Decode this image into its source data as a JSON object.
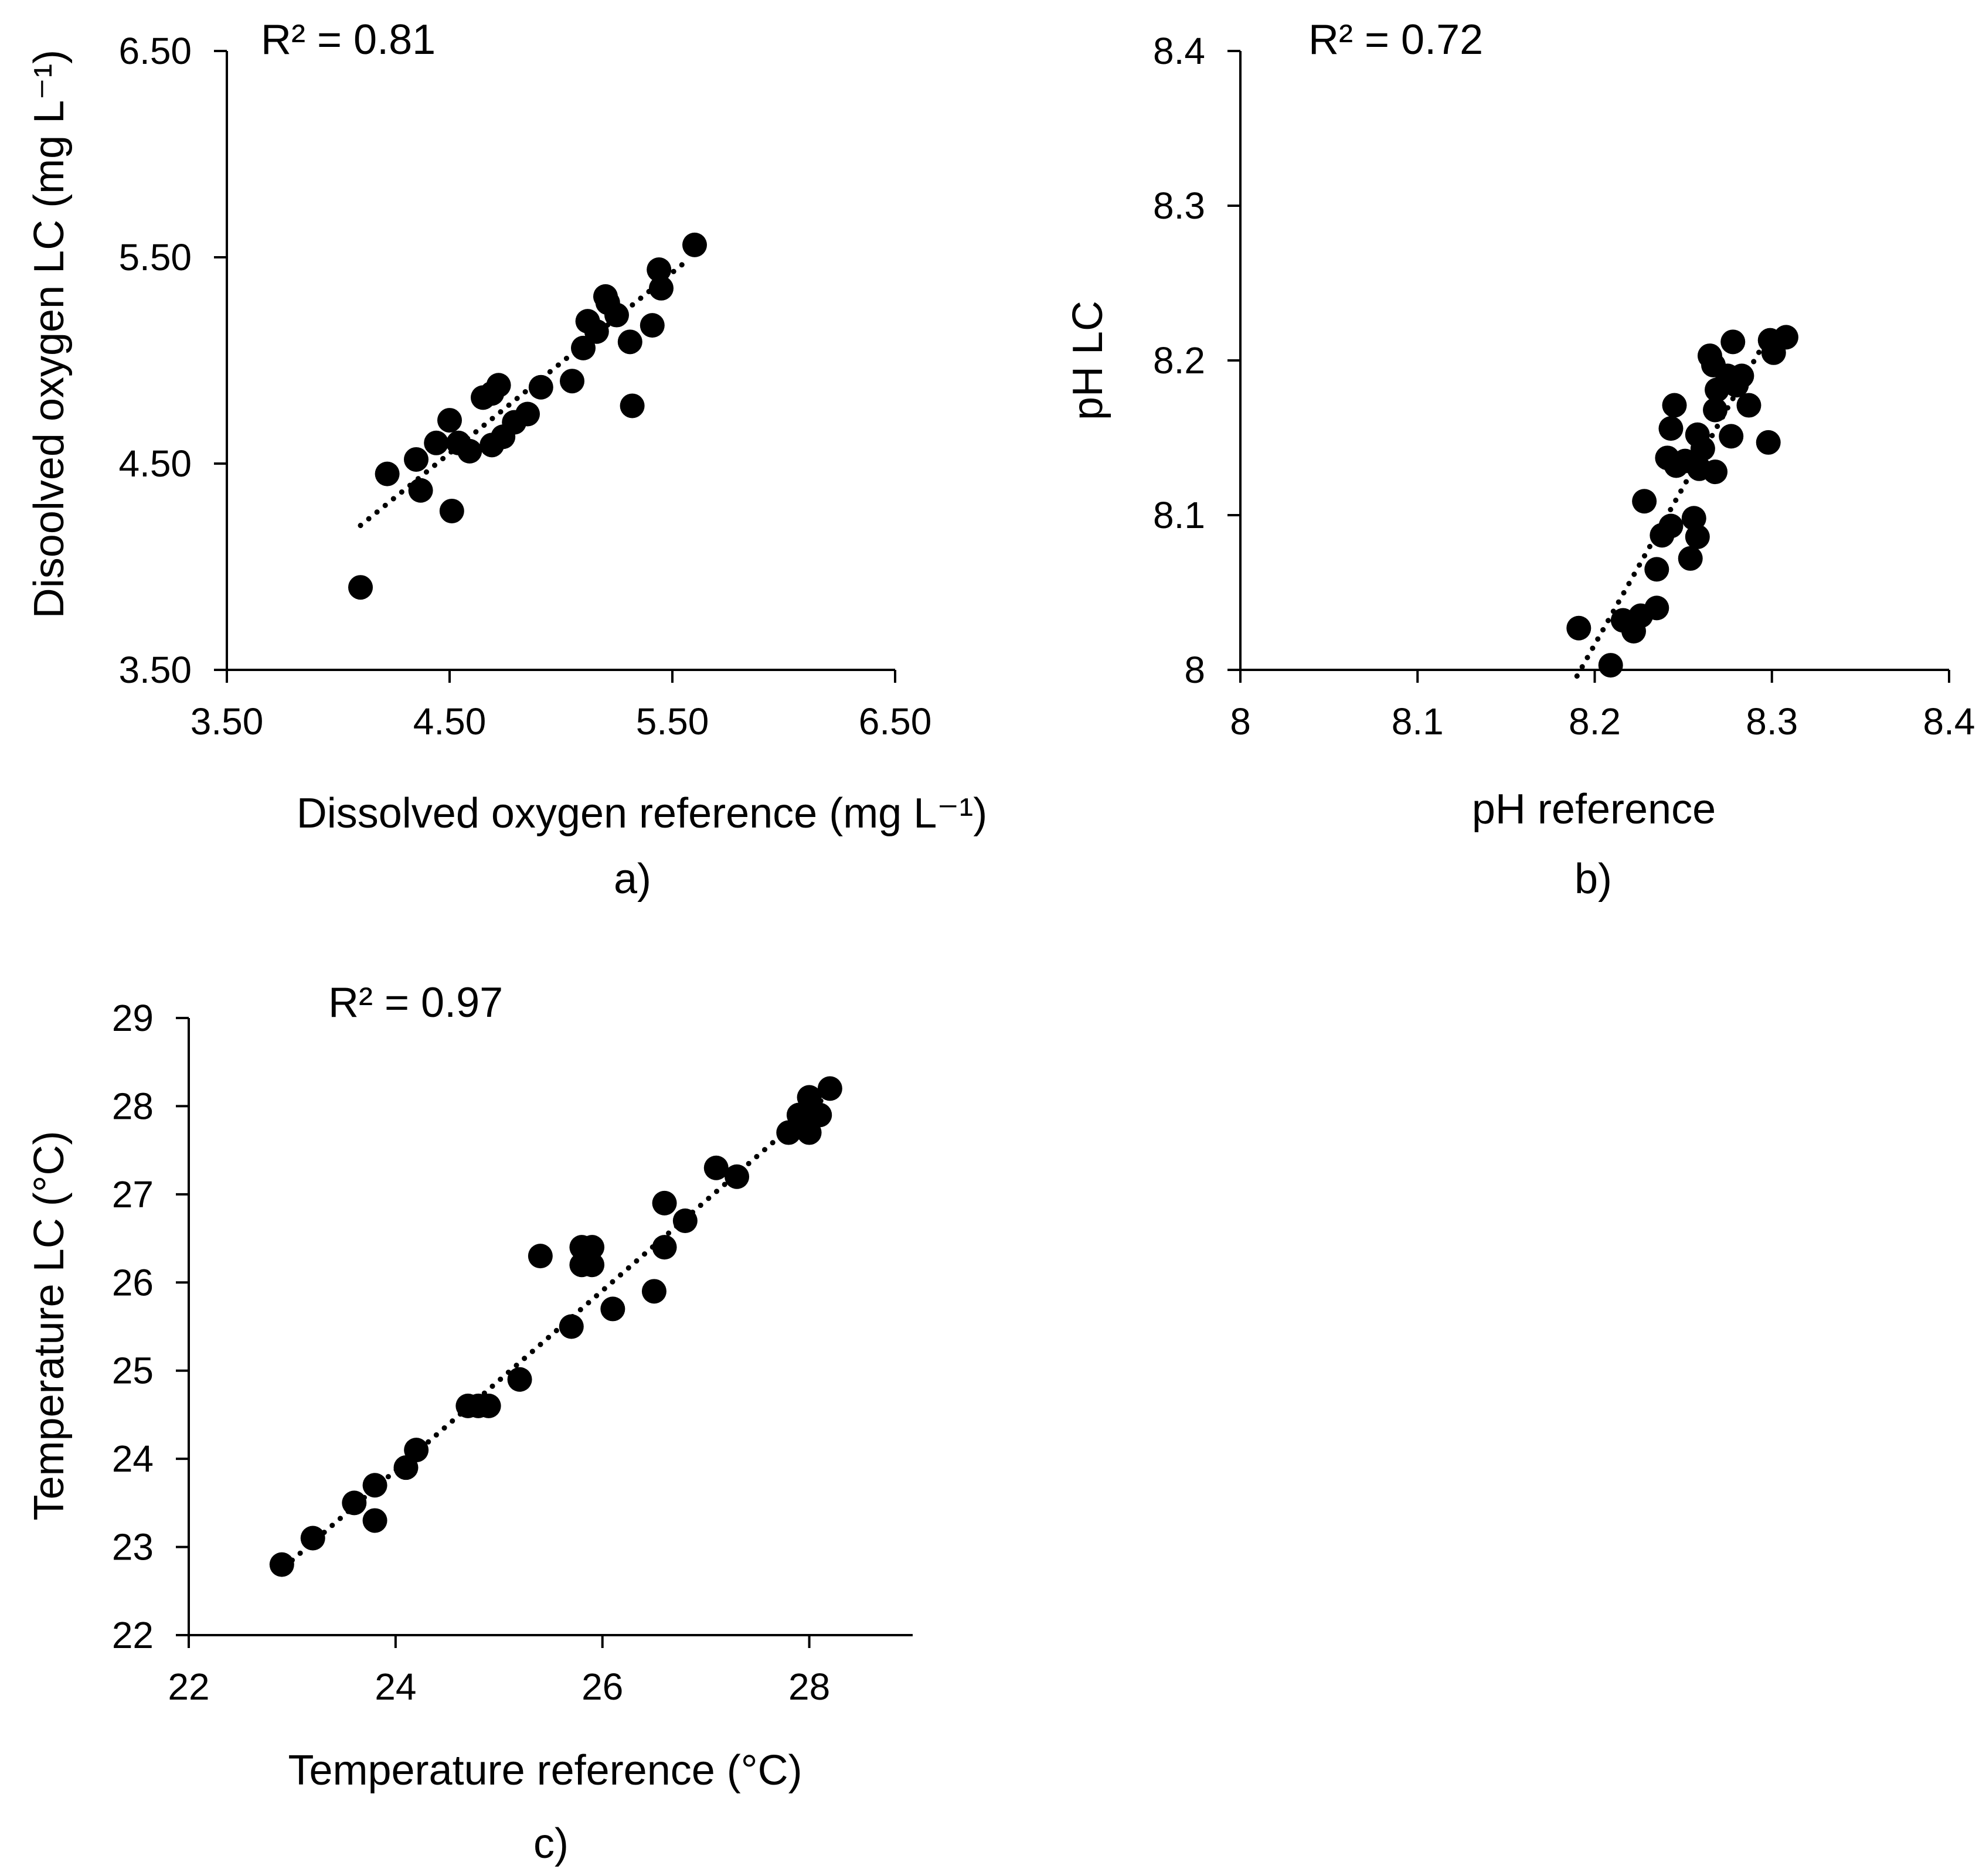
{
  "chart_data": [
    {
      "type": "scatter",
      "panel_label": "a)",
      "r2_label": "R² = 0.81",
      "xlabel": "Dissolved oxygen reference (mg L⁻¹)",
      "ylabel": "Disoolved oxygen LC (mg L⁻¹)",
      "xlim": [
        3.5,
        6.5
      ],
      "ylim": [
        3.5,
        6.5
      ],
      "xticks": [
        "3.50",
        "4.50",
        "5.50",
        "6.50"
      ],
      "yticks": [
        "3.50",
        "4.50",
        "5.50",
        "6.50"
      ],
      "xtick_values": [
        3.5,
        4.5,
        5.5,
        6.5
      ],
      "ytick_values": [
        3.5,
        4.5,
        5.5,
        6.5
      ],
      "trendline": {
        "x": [
          4.1,
          5.55
        ],
        "y": [
          4.2,
          5.47
        ]
      },
      "points": [
        [
          4.1,
          3.9
        ],
        [
          4.22,
          4.45
        ],
        [
          4.35,
          4.52
        ],
        [
          4.37,
          4.37
        ],
        [
          4.44,
          4.6
        ],
        [
          4.5,
          4.71
        ],
        [
          4.51,
          4.27
        ],
        [
          4.54,
          4.6
        ],
        [
          4.59,
          4.56
        ],
        [
          4.65,
          4.82
        ],
        [
          4.69,
          4.84
        ],
        [
          4.69,
          4.59
        ],
        [
          4.72,
          4.88
        ],
        [
          4.74,
          4.63
        ],
        [
          4.79,
          4.7
        ],
        [
          4.85,
          4.74
        ],
        [
          4.91,
          4.87
        ],
        [
          5.05,
          4.9
        ],
        [
          5.1,
          5.06
        ],
        [
          5.12,
          5.19
        ],
        [
          5.16,
          5.14
        ],
        [
          5.2,
          5.31
        ],
        [
          5.21,
          5.28
        ],
        [
          5.25,
          5.22
        ],
        [
          5.31,
          5.09
        ],
        [
          5.32,
          4.78
        ],
        [
          5.41,
          5.17
        ],
        [
          5.44,
          5.44
        ],
        [
          5.45,
          5.35
        ],
        [
          5.6,
          5.56
        ]
      ]
    },
    {
      "type": "scatter",
      "panel_label": "b)",
      "r2_label": "R² = 0.72",
      "xlabel": "pH reference",
      "ylabel": "pH LC",
      "xlim": [
        8.0,
        8.4
      ],
      "ylim": [
        8.0,
        8.4
      ],
      "xticks": [
        "8",
        "8.1",
        "8.2",
        "8.3",
        "8.4"
      ],
      "yticks": [
        "8",
        "8.1",
        "8.2",
        "8.3",
        "8.4"
      ],
      "xtick_values": [
        8.0,
        8.1,
        8.2,
        8.3,
        8.4
      ],
      "ytick_values": [
        8.0,
        8.1,
        8.2,
        8.3,
        8.4
      ],
      "trendline": {
        "x": [
          8.19,
          8.295
        ],
        "y": [
          7.996,
          8.21
        ]
      },
      "points": [
        [
          8.191,
          8.027
        ],
        [
          8.209,
          8.003
        ],
        [
          8.216,
          8.032
        ],
        [
          8.222,
          8.025
        ],
        [
          8.226,
          8.035
        ],
        [
          8.228,
          8.109
        ],
        [
          8.235,
          8.04
        ],
        [
          8.235,
          8.065
        ],
        [
          8.238,
          8.087
        ],
        [
          8.241,
          8.137
        ],
        [
          8.243,
          8.093
        ],
        [
          8.243,
          8.156
        ],
        [
          8.245,
          8.171
        ],
        [
          8.246,
          8.132
        ],
        [
          8.251,
          8.135
        ],
        [
          8.254,
          8.072
        ],
        [
          8.256,
          8.098
        ],
        [
          8.258,
          8.086
        ],
        [
          8.258,
          8.152
        ],
        [
          8.259,
          8.13
        ],
        [
          8.261,
          8.143
        ],
        [
          8.265,
          8.203
        ],
        [
          8.267,
          8.197
        ],
        [
          8.268,
          8.128
        ],
        [
          8.268,
          8.168
        ],
        [
          8.269,
          8.181
        ],
        [
          8.275,
          8.19
        ],
        [
          8.277,
          8.151
        ],
        [
          8.278,
          8.212
        ],
        [
          8.28,
          8.184
        ],
        [
          8.283,
          8.19
        ],
        [
          8.287,
          8.171
        ],
        [
          8.298,
          8.147
        ],
        [
          8.299,
          8.213
        ],
        [
          8.301,
          8.205
        ],
        [
          8.308,
          8.215
        ]
      ]
    },
    {
      "type": "scatter",
      "panel_label": "c)",
      "r2_label": "R² = 0.97",
      "xlabel": "Temperature reference (°C)",
      "ylabel": "Temperature LC (°C)",
      "xlim": [
        22,
        29
      ],
      "ylim": [
        22,
        29
      ],
      "xticks": [
        "22",
        "24",
        "26",
        "28"
      ],
      "yticks": [
        "22",
        "23",
        "24",
        "25",
        "26",
        "27",
        "28",
        "29"
      ],
      "xtick_values": [
        22,
        24,
        26,
        28
      ],
      "ytick_values": [
        22,
        23,
        24,
        25,
        26,
        27,
        28,
        29
      ],
      "trendline": {
        "x": [
          23.0,
          28.2
        ],
        "y": [
          22.85,
          28.15
        ]
      },
      "points": [
        [
          22.9,
          22.8
        ],
        [
          23.2,
          23.1
        ],
        [
          23.6,
          23.5
        ],
        [
          23.8,
          23.7
        ],
        [
          23.8,
          23.3
        ],
        [
          24.1,
          23.9
        ],
        [
          24.2,
          24.1
        ],
        [
          24.7,
          24.6
        ],
        [
          24.8,
          24.6
        ],
        [
          24.9,
          24.6
        ],
        [
          25.2,
          24.9
        ],
        [
          25.4,
          26.3
        ],
        [
          25.7,
          25.5
        ],
        [
          25.8,
          26.4
        ],
        [
          25.8,
          26.2
        ],
        [
          25.9,
          26.4
        ],
        [
          25.9,
          26.2
        ],
        [
          26.1,
          25.7
        ],
        [
          26.5,
          25.9
        ],
        [
          26.6,
          26.4
        ],
        [
          26.6,
          26.9
        ],
        [
          26.8,
          26.7
        ],
        [
          27.1,
          27.3
        ],
        [
          27.3,
          27.2
        ],
        [
          27.8,
          27.7
        ],
        [
          27.9,
          27.9
        ],
        [
          28.0,
          27.7
        ],
        [
          28.0,
          28.1
        ],
        [
          28.1,
          27.9
        ],
        [
          28.2,
          28.2
        ]
      ]
    }
  ]
}
